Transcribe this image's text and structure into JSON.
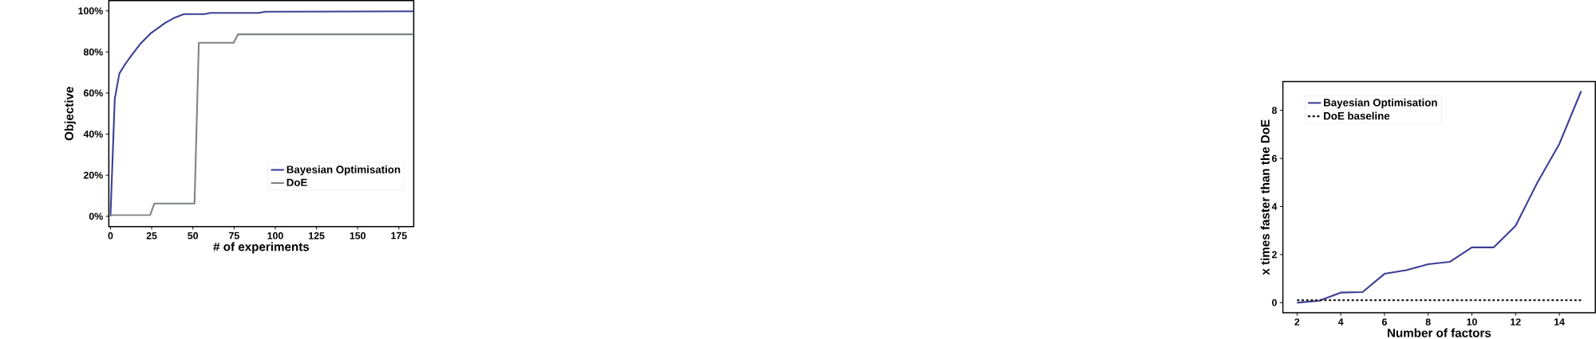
{
  "chart_data": [
    {
      "type": "line",
      "xlabel": "# of experiments",
      "ylabel": "Objective",
      "xlim": [
        -1,
        184
      ],
      "ylim": [
        -5,
        105
      ],
      "xticks": [
        0,
        25,
        50,
        75,
        100,
        125,
        150,
        175
      ],
      "yticks": [
        {
          "value": 0,
          "label": "0%"
        },
        {
          "value": 20,
          "label": "20%"
        },
        {
          "value": 40,
          "label": "40%"
        },
        {
          "value": 60,
          "label": "60%"
        },
        {
          "value": 80,
          "label": "80%"
        },
        {
          "value": 100,
          "label": "100%"
        }
      ],
      "legend": "bottom right",
      "grid": false,
      "marker": "none",
      "series": [
        {
          "name": "Bayesian Optimisation",
          "color": "#3d3d96",
          "line_style": "solid",
          "x": [
            0,
            2.6,
            5.4,
            9.2,
            13.1,
            18.5,
            24.6,
            33.1,
            39.2,
            44.6,
            57,
            60.5,
            90,
            93.9,
            184
          ],
          "values": [
            0,
            57.2,
            69.5,
            74.4,
            78.7,
            84.3,
            89.2,
            94.1,
            96.8,
            98.4,
            98.4,
            99,
            99,
            99.6,
            99.8
          ]
        },
        {
          "name": "DoE",
          "color": "#7f8283",
          "line_style": "solid",
          "x": [
            0,
            24,
            26.6,
            51,
            53.6,
            74.7,
            77.4,
            184
          ],
          "values": [
            0.5,
            0.5,
            6.2,
            6.2,
            84.5,
            84.5,
            88.6,
            88.6
          ]
        }
      ]
    },
    {
      "type": "line",
      "xlabel": "Number of factors",
      "ylabel": "x times faster than the DoE",
      "xlim": [
        1.35,
        15.65
      ],
      "ylim": [
        -0.42,
        9.2
      ],
      "xticks": [
        2,
        4,
        6,
        8,
        10,
        12,
        14
      ],
      "yticks": [
        0,
        2,
        4,
        6,
        8
      ],
      "legend": "top left",
      "grid": false,
      "marker": "none",
      "series": [
        {
          "name": "Bayesian Optimisation",
          "color": "#3d3d96",
          "line_style": "solid",
          "x": [
            2,
            3,
            4,
            5,
            6,
            7,
            8,
            9,
            10,
            11,
            12,
            13,
            14,
            15
          ],
          "values": [
            0,
            0.08,
            0.42,
            0.44,
            1.2,
            1.35,
            1.6,
            1.7,
            2.3,
            2.3,
            3.2,
            5.0,
            6.6,
            8.8
          ]
        },
        {
          "name": "DoE baseline",
          "color": "#000000",
          "line_style": "dashed",
          "x": [
            2,
            15
          ],
          "values": [
            0.1,
            0.1
          ]
        }
      ]
    }
  ]
}
